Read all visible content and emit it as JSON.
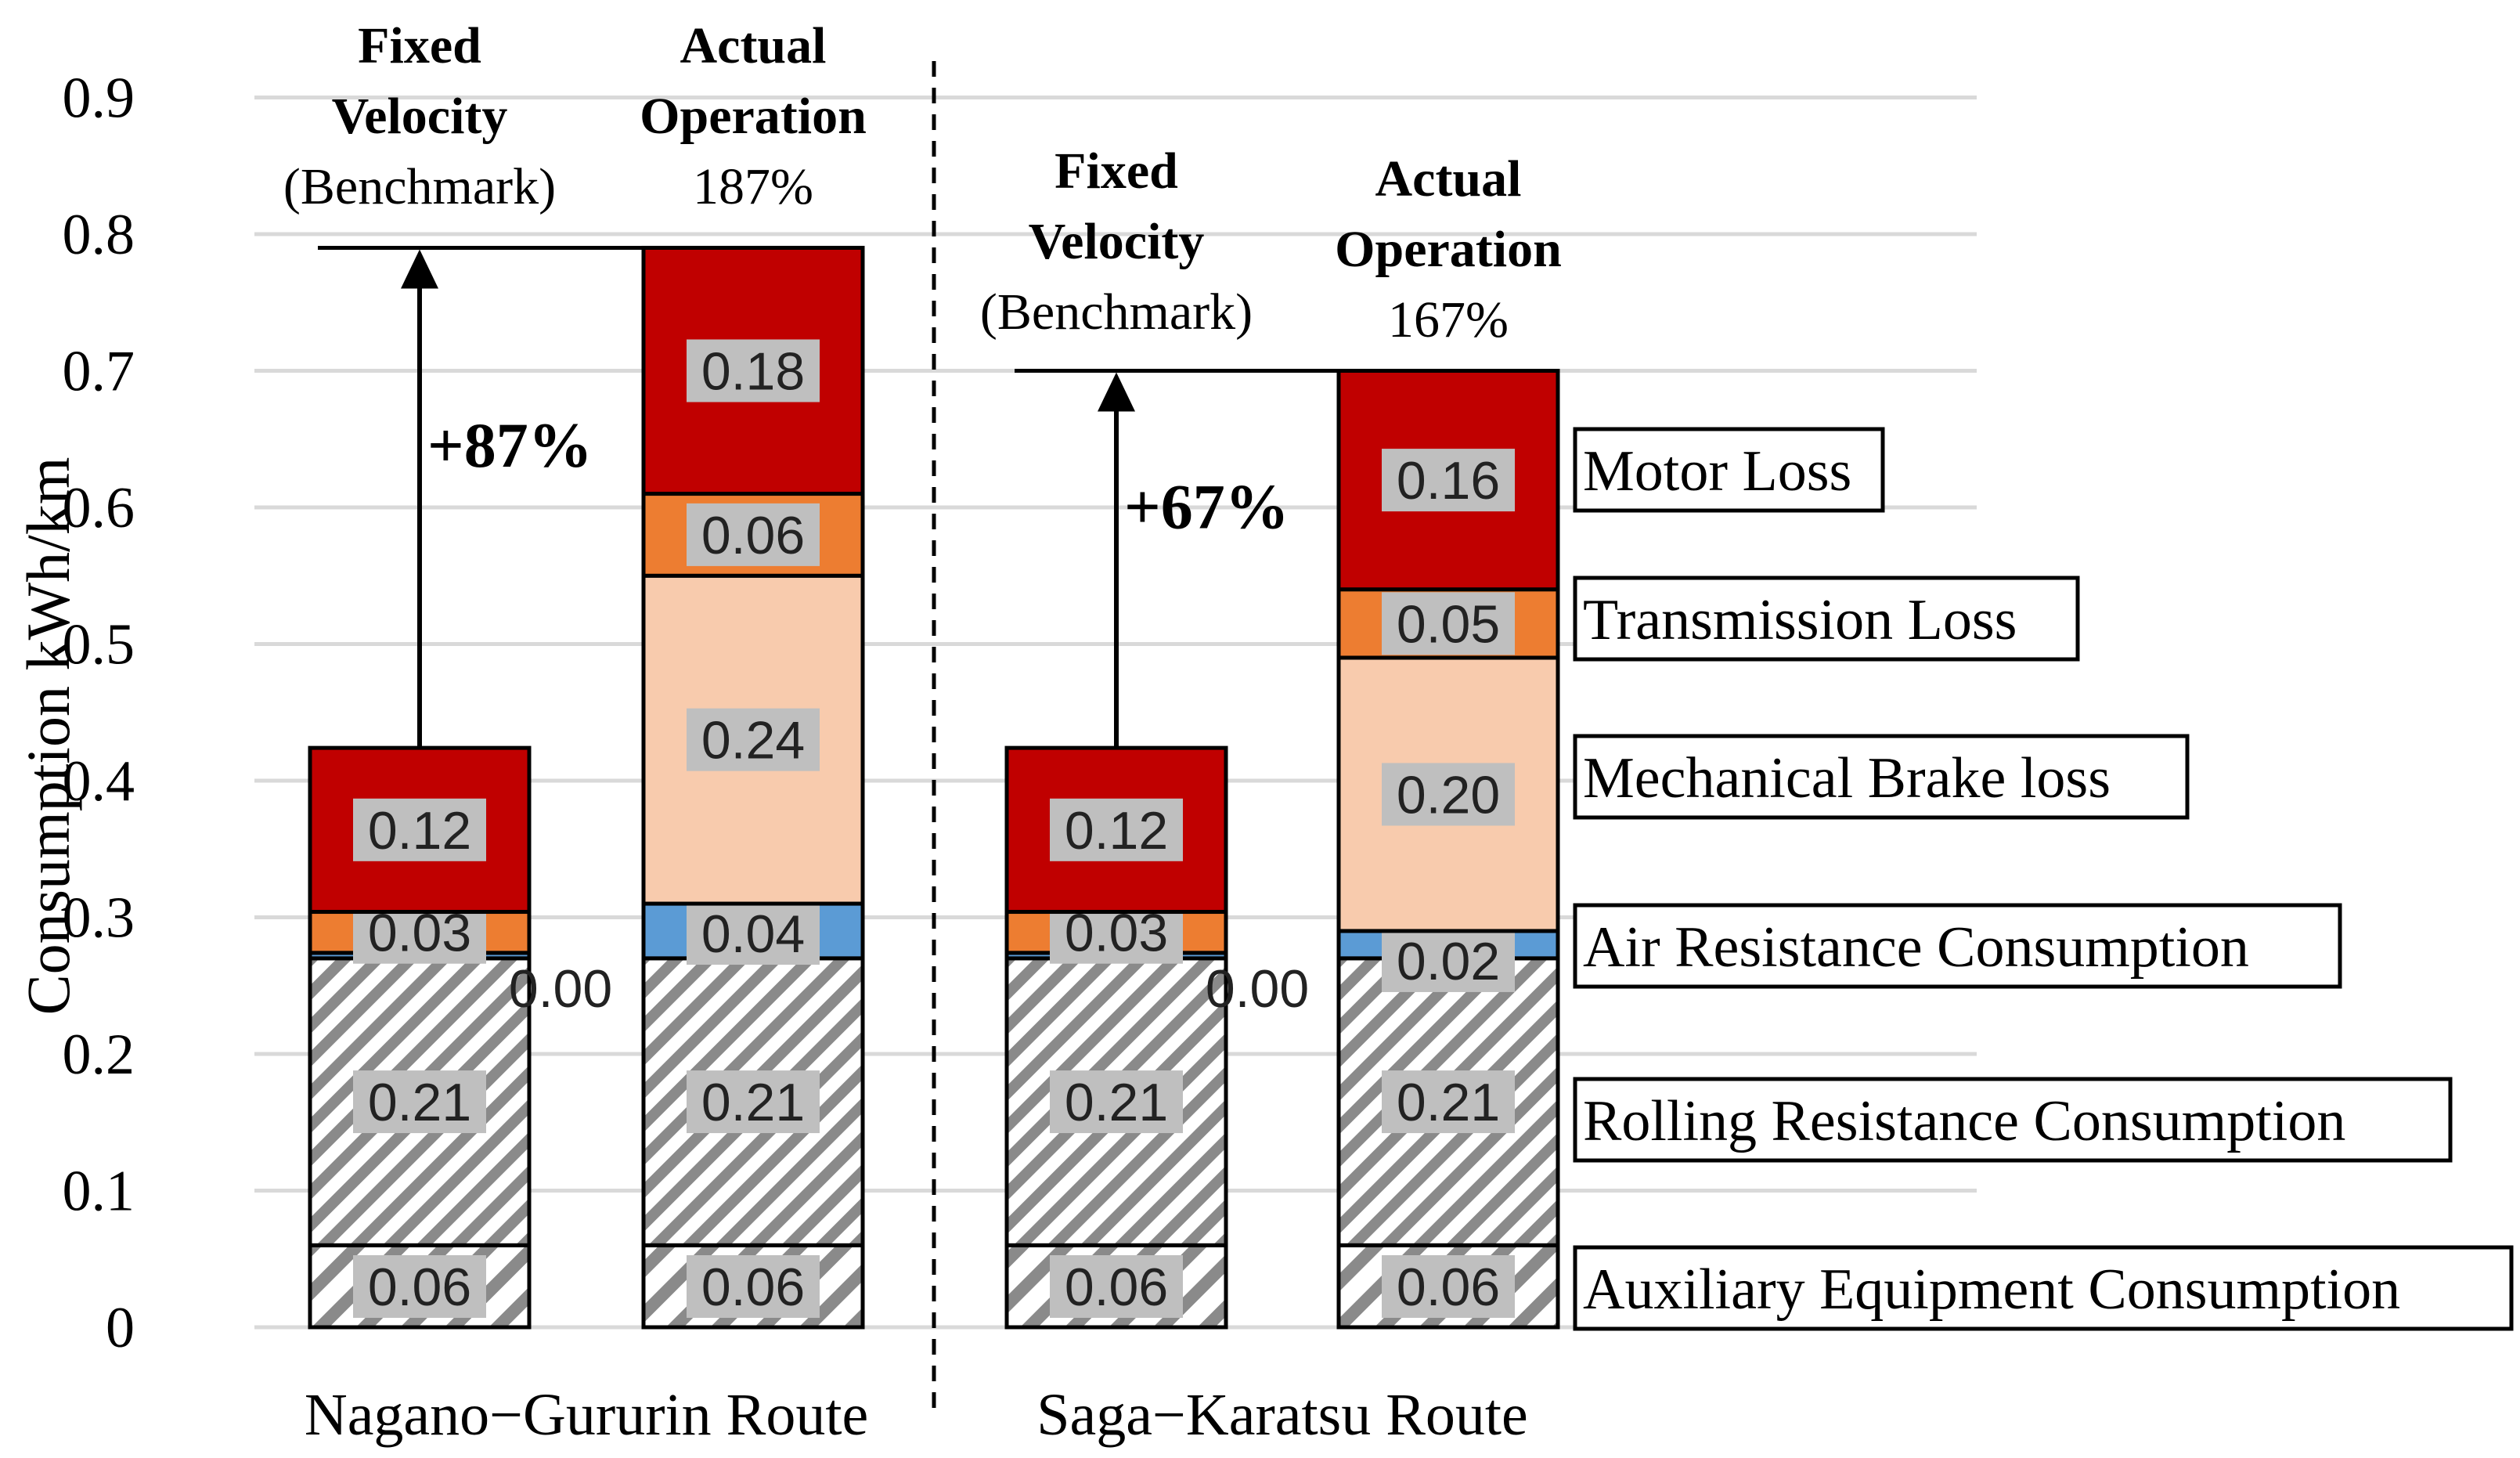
{
  "chart_data": {
    "type": "stacked-bar",
    "ylabel": "Consumption  kWh/km",
    "ylim": [
      0,
      0.9
    ],
    "yticks": [
      "0",
      "0.1",
      "0.2",
      "0.3",
      "0.4",
      "0.5",
      "0.6",
      "0.7",
      "0.8",
      "0.9"
    ],
    "grid": true,
    "colors": {
      "motor": "#c00000",
      "transmission": "#ed7d31",
      "brake": "#f8cbad",
      "air": "#5b9bd5",
      "rolling": "#ffffff",
      "auxiliary": "#ffffff",
      "label_box": "#bfbfbf",
      "grid": "#d9d9d9"
    },
    "legend": [
      {
        "key": "motor",
        "label": "Motor Loss"
      },
      {
        "key": "transmission",
        "label": "Transmission Loss"
      },
      {
        "key": "brake",
        "label": "Mechanical Brake loss"
      },
      {
        "key": "air",
        "label": "Air Resistance Consumption"
      },
      {
        "key": "rolling",
        "label": "Rolling Resistance Consumption"
      },
      {
        "key": "auxiliary",
        "label": "Auxiliary Equipment Consumption"
      }
    ],
    "groups": [
      {
        "name": "Nagano−Gururin Route",
        "increase_label": "+87%",
        "bars": [
          {
            "head": [
              "Fixed",
              "Velocity"
            ],
            "sub": "(Benchmark)",
            "segments": [
              {
                "key": "auxiliary",
                "value": 0.06,
                "label": "0.06"
              },
              {
                "key": "rolling",
                "value": 0.21,
                "label": "0.21"
              },
              {
                "key": "air",
                "value": 0.004,
                "label": "0.00"
              },
              {
                "key": "transmission",
                "value": 0.03,
                "label": "0.03"
              },
              {
                "key": "motor",
                "value": 0.12,
                "label": "0.12"
              }
            ]
          },
          {
            "head": [
              "Actual",
              "Operation"
            ],
            "sub": "187%",
            "segments": [
              {
                "key": "auxiliary",
                "value": 0.06,
                "label": "0.06"
              },
              {
                "key": "rolling",
                "value": 0.21,
                "label": "0.21"
              },
              {
                "key": "air",
                "value": 0.04,
                "label": "0.04"
              },
              {
                "key": "brake",
                "value": 0.24,
                "label": "0.24"
              },
              {
                "key": "transmission",
                "value": 0.06,
                "label": "0.06"
              },
              {
                "key": "motor",
                "value": 0.18,
                "label": "0.18"
              }
            ]
          }
        ]
      },
      {
        "name": "Saga−Karatsu Route",
        "increase_label": "+67%",
        "bars": [
          {
            "head": [
              "Fixed",
              "Velocity"
            ],
            "sub": "(Benchmark)",
            "segments": [
              {
                "key": "auxiliary",
                "value": 0.06,
                "label": "0.06"
              },
              {
                "key": "rolling",
                "value": 0.21,
                "label": "0.21"
              },
              {
                "key": "air",
                "value": 0.004,
                "label": "0.00"
              },
              {
                "key": "transmission",
                "value": 0.03,
                "label": "0.03"
              },
              {
                "key": "motor",
                "value": 0.12,
                "label": "0.12"
              }
            ]
          },
          {
            "head": [
              "Actual",
              "Operation"
            ],
            "sub": "167%",
            "segments": [
              {
                "key": "auxiliary",
                "value": 0.06,
                "label": "0.06"
              },
              {
                "key": "rolling",
                "value": 0.21,
                "label": "0.21"
              },
              {
                "key": "air",
                "value": 0.02,
                "label": "0.02"
              },
              {
                "key": "brake",
                "value": 0.2,
                "label": "0.20"
              },
              {
                "key": "transmission",
                "value": 0.05,
                "label": "0.05"
              },
              {
                "key": "motor",
                "value": 0.16,
                "label": "0.16"
              }
            ]
          }
        ]
      }
    ]
  }
}
